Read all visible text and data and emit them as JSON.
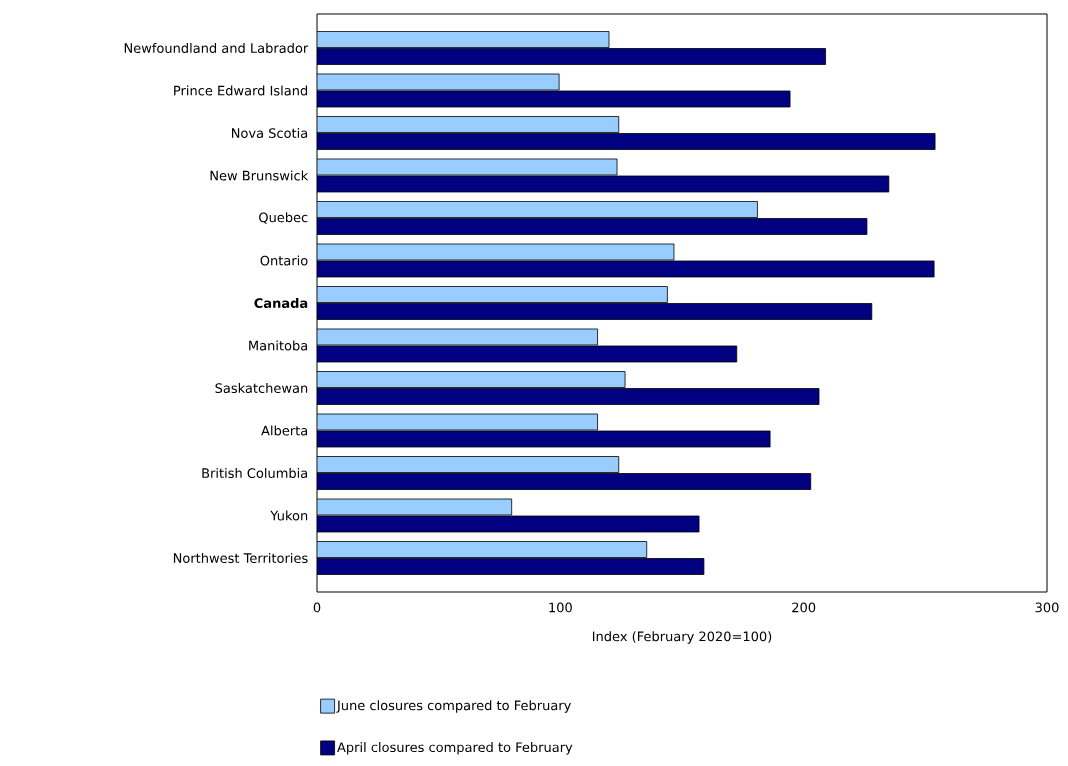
{
  "chart_data": {
    "type": "bar",
    "orientation": "horizontal",
    "xlabel": "Index (February 2020=100)",
    "categories": [
      "Newfoundland and Labrador",
      "Prince Edward Island",
      "Nova Scotia",
      "New Brunswick",
      "Quebec",
      "Ontario",
      "**Canada**",
      "Manitoba",
      "Saskatchewan",
      "Alberta",
      "British Columbia",
      "Yukon",
      "Northwest Territories"
    ],
    "series": [
      {
        "name": "June closures compared to February",
        "color": "#99ccff",
        "values": [
          120,
          99.5,
          124,
          123.3,
          181,
          146.7,
          144,
          115.3,
          126.6,
          115.3,
          124,
          80,
          135.5
        ]
      },
      {
        "name": "April closures compared to February",
        "color": "#000080",
        "values": [
          209,
          194.4,
          254,
          235,
          226,
          253.6,
          228,
          172.5,
          206.3,
          186.2,
          202.9,
          157,
          159
        ]
      }
    ],
    "xlim": [
      0,
      300
    ],
    "xticks": [
      0,
      100,
      200,
      300
    ],
    "grid": false,
    "legend": "bottom"
  }
}
